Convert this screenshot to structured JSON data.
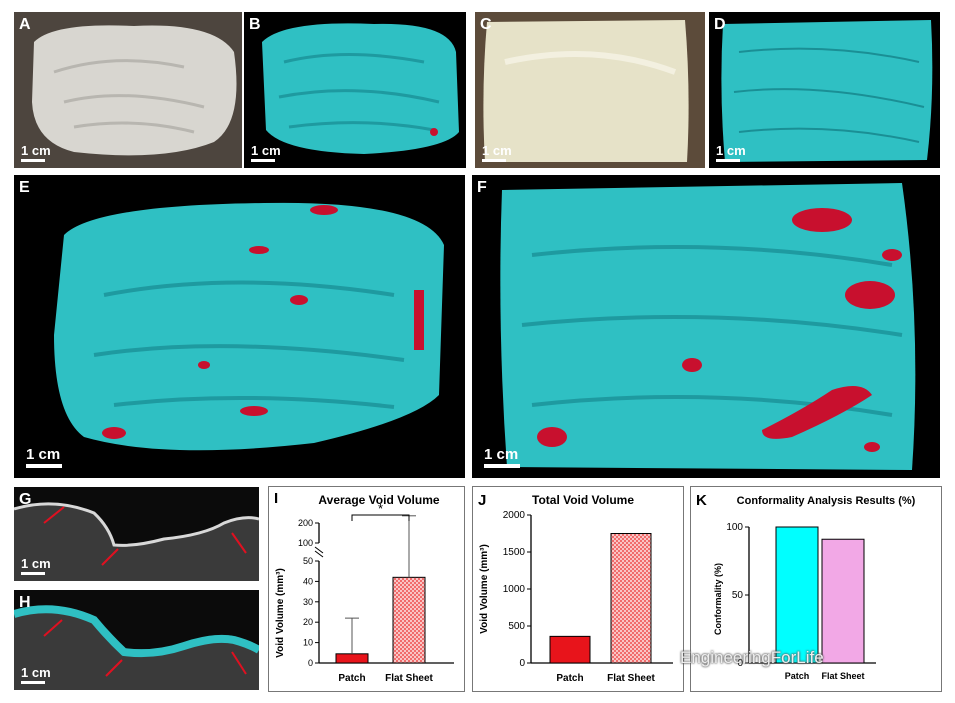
{
  "panels": {
    "A": {
      "label": "A",
      "scale": "1 cm"
    },
    "B": {
      "label": "B",
      "scale": "1 cm"
    },
    "C": {
      "label": "C",
      "scale": "1 cm"
    },
    "D": {
      "label": "D",
      "scale": "1 cm"
    },
    "E": {
      "label": "E",
      "scale": "1 cm"
    },
    "F": {
      "label": "F",
      "scale": "1 cm"
    },
    "G": {
      "label": "G",
      "scale": "1 cm"
    },
    "H": {
      "label": "H",
      "scale": "1 cm"
    }
  },
  "colors": {
    "teal": "#2fc0c3",
    "void_red": "#c8102e",
    "patch_bar": "#e8141b",
    "flat_bar": "#f06060",
    "conf_patch": "#00ffff",
    "conf_flat": "#f2a8e6"
  },
  "watermark": "EngineeringForLife",
  "chart_data": [
    {
      "panel_label": "I",
      "type": "bar",
      "title": "Average Void Volume",
      "ylabel": "Void Volume (mm³)",
      "categories": [
        "Patch",
        "Flat Sheet"
      ],
      "values": [
        4.5,
        42
      ],
      "error_bars": [
        17.5,
        194
      ],
      "ylim_lower": [
        0,
        50
      ],
      "ylim_upper": [
        100,
        200
      ],
      "yticks": [
        "0",
        "10",
        "20",
        "30",
        "40",
        "50",
        "100",
        "200"
      ],
      "significance": "*"
    },
    {
      "panel_label": "J",
      "type": "bar",
      "title": "Total Void Volume",
      "ylabel": "Void Volume (mm³)",
      "categories": [
        "Patch",
        "Flat Sheet"
      ],
      "values": [
        360,
        1750
      ],
      "ylim": [
        0,
        2000
      ],
      "yticks": [
        "0",
        "500",
        "1000",
        "1500",
        "2000"
      ]
    },
    {
      "panel_label": "K",
      "type": "bar",
      "title": "Conformality Analysis Results (%)",
      "ylabel": "Conformality (%)",
      "categories": [
        "Patch",
        "Flat Sheet"
      ],
      "values": [
        100,
        91
      ],
      "ylim": [
        0,
        100
      ],
      "yticks": [
        "0",
        "50",
        "100"
      ]
    }
  ]
}
